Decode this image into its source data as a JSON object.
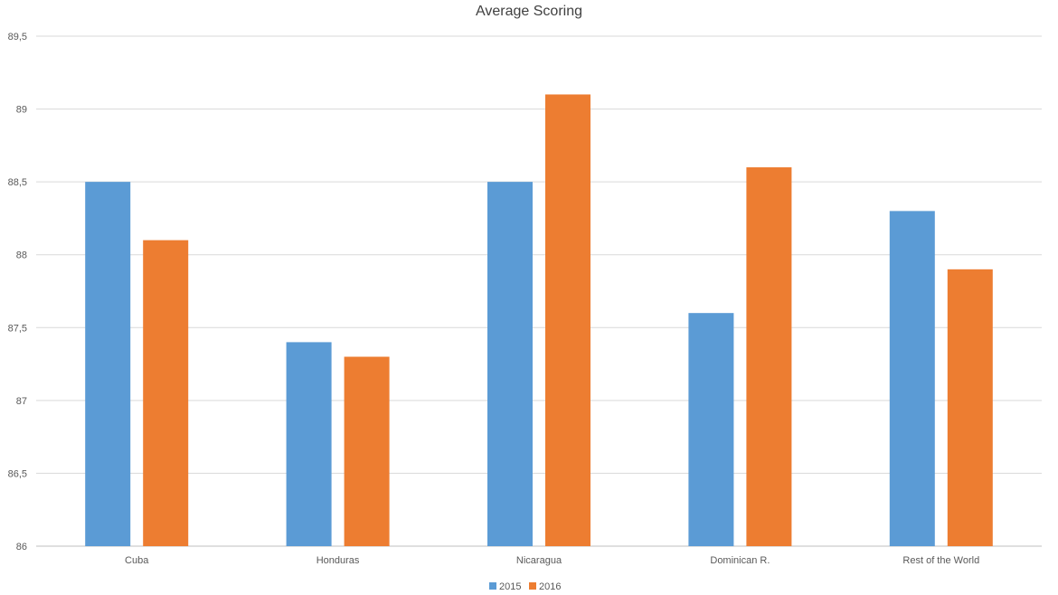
{
  "chart_data": {
    "type": "bar",
    "title": "Average Scoring",
    "xlabel": "",
    "ylabel": "",
    "categories": [
      "Cuba",
      "Honduras",
      "Nicaragua",
      "Dominican R.",
      "Rest of the World"
    ],
    "series": [
      {
        "name": "2015",
        "color": "#5b9bd5",
        "values": [
          88.5,
          87.4,
          88.5,
          87.6,
          88.3
        ]
      },
      {
        "name": "2016",
        "color": "#ed7d31",
        "values": [
          88.1,
          87.3,
          89.1,
          88.6,
          87.9
        ]
      }
    ],
    "ylim": [
      86,
      89.5
    ],
    "yticks": [
      "86",
      "86,5",
      "87",
      "87,5",
      "88",
      "88,5",
      "89",
      "89,5"
    ],
    "grid": true,
    "legend_position": "bottom-center"
  }
}
